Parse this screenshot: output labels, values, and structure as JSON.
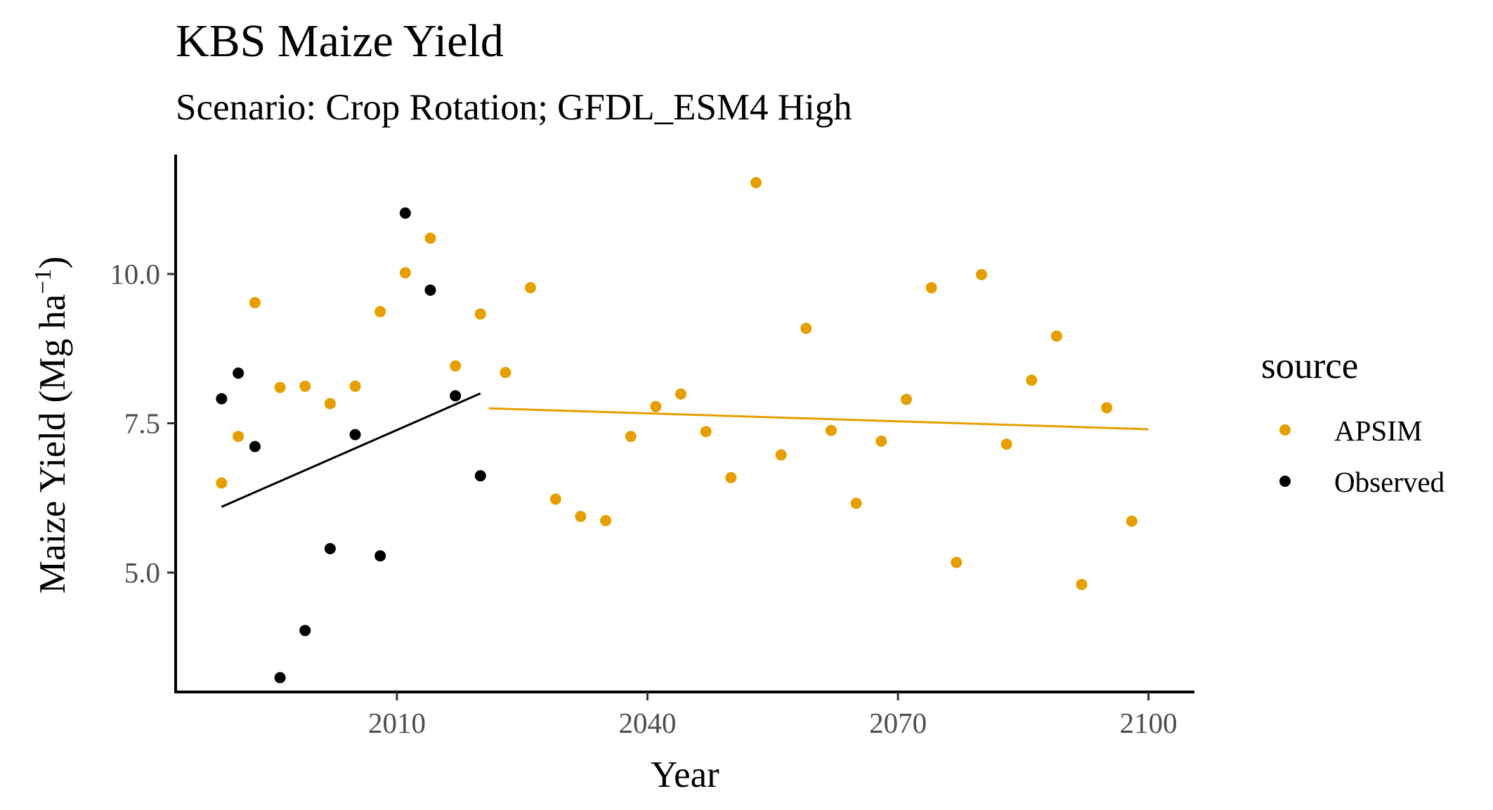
{
  "chart_data": {
    "type": "scatter",
    "title": "KBS Maize Yield",
    "subtitle": "Scenario: Crop Rotation; GFDL_ESM4 High",
    "xlabel": "Year",
    "ylabel_main": "Maize Yield (Mg ha",
    "ylabel_sup": "−1",
    "ylabel_close": ")",
    "xlim": [
      1983.5,
      2105.5
    ],
    "ylim": [
      3.0,
      12.0
    ],
    "x_ticks": [
      2010,
      2040,
      2070,
      2100
    ],
    "x_tick_labels": [
      "2010",
      "2040",
      "2070",
      "2100"
    ],
    "y_ticks": [
      5.0,
      7.5,
      10.0
    ],
    "y_tick_labels": [
      "5.0",
      "7.5",
      "10.0"
    ],
    "grid": false,
    "legend": {
      "title": "source",
      "position": "right",
      "entries": [
        "APSIM",
        "Observed"
      ]
    },
    "colors": {
      "APSIM": "#E69F00",
      "Observed": "#000000"
    },
    "series": [
      {
        "name": "APSIM",
        "points": [
          [
            1989,
            6.5
          ],
          [
            1991,
            7.28
          ],
          [
            1993,
            9.52
          ],
          [
            1996,
            8.1
          ],
          [
            1999,
            8.12
          ],
          [
            2002,
            7.83
          ],
          [
            2005,
            8.12
          ],
          [
            2008,
            9.37
          ],
          [
            2011,
            10.02
          ],
          [
            2014,
            10.6
          ],
          [
            2017,
            8.46
          ],
          [
            2020,
            9.33
          ],
          [
            2023,
            8.35
          ],
          [
            2026,
            9.77
          ],
          [
            2029,
            6.23
          ],
          [
            2032,
            5.94
          ],
          [
            2035,
            5.87
          ],
          [
            2038,
            7.28
          ],
          [
            2041,
            7.78
          ],
          [
            2044,
            7.99
          ],
          [
            2047,
            7.36
          ],
          [
            2050,
            6.59
          ],
          [
            2053,
            11.53
          ],
          [
            2056,
            6.97
          ],
          [
            2059,
            9.09
          ],
          [
            2062,
            7.38
          ],
          [
            2065,
            6.16
          ],
          [
            2068,
            7.2
          ],
          [
            2071,
            7.9
          ],
          [
            2074,
            9.77
          ],
          [
            2077,
            5.17
          ],
          [
            2080,
            9.99
          ],
          [
            2083,
            7.15
          ],
          [
            2086,
            8.22
          ],
          [
            2089,
            8.96
          ],
          [
            2092,
            4.8
          ],
          [
            2095,
            7.76
          ],
          [
            2098,
            5.86
          ]
        ],
        "trend": [
          [
            2021,
            7.75
          ],
          [
            2100,
            7.4
          ]
        ]
      },
      {
        "name": "Observed",
        "points": [
          [
            1989,
            7.91
          ],
          [
            1991,
            8.34
          ],
          [
            1993,
            7.11
          ],
          [
            1996,
            3.24
          ],
          [
            1999,
            4.03
          ],
          [
            2002,
            5.4
          ],
          [
            2005,
            7.31
          ],
          [
            2008,
            5.28
          ],
          [
            2011,
            11.02
          ],
          [
            2014,
            9.73
          ],
          [
            2017,
            7.96
          ],
          [
            2020,
            6.62
          ]
        ],
        "trend": [
          [
            1989,
            6.1
          ],
          [
            2020,
            8.0
          ]
        ]
      }
    ]
  }
}
